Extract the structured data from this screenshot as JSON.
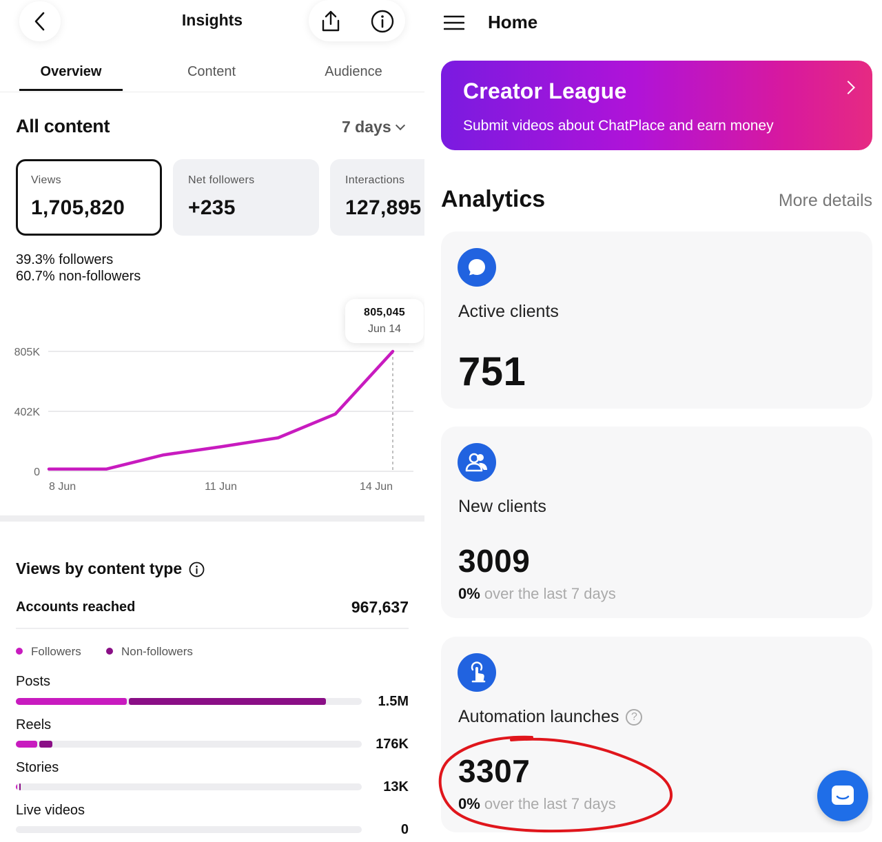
{
  "left": {
    "header": {
      "title": "Insights"
    },
    "tabs": [
      {
        "label": "Overview",
        "active": true
      },
      {
        "label": "Content",
        "active": false
      },
      {
        "label": "Audience",
        "active": false
      }
    ],
    "section_title": "All content",
    "range": "7 days",
    "stats": [
      {
        "label": "Views",
        "value": "1,705,820",
        "selected": true
      },
      {
        "label": "Net followers",
        "value": "+235",
        "selected": false
      },
      {
        "label": "Interactions",
        "value": "127,895",
        "selected": false
      }
    ],
    "followers_pct": {
      "pct": "39.3%",
      "label": "followers"
    },
    "nonfollowers_pct": {
      "pct": "60.7%",
      "label": "non-followers"
    },
    "tooltip": {
      "value": "805,045",
      "date": "Jun 14"
    },
    "views_by_type": {
      "title": "Views by content type",
      "accounts_label": "Accounts reached",
      "accounts_value": "967,637",
      "legend": [
        {
          "label": "Followers",
          "color": "#c81bbf"
        },
        {
          "label": "Non-followers",
          "color": "#8a0f86"
        }
      ],
      "rows": [
        {
          "label": "Posts",
          "value": "1.5M",
          "followers_frac": 0.32,
          "nonfollowers_frac": 0.57
        },
        {
          "label": "Reels",
          "value": "176K",
          "followers_frac": 0.062,
          "nonfollowers_frac": 0.038
        },
        {
          "label": "Stories",
          "value": "13K",
          "followers_frac": 0.003,
          "nonfollowers_frac": 0.003
        },
        {
          "label": "Live videos",
          "value": "0",
          "followers_frac": 0,
          "nonfollowers_frac": 0
        }
      ]
    }
  },
  "chart_data": {
    "type": "line",
    "series": [
      {
        "color": "#c81bbf",
        "values": [
          15000,
          15000,
          110000,
          165000,
          225000,
          385000,
          805045
        ]
      }
    ],
    "x": [
      "8 Jun",
      "9 Jun",
      "10 Jun",
      "11 Jun",
      "12 Jun",
      "13 Jun",
      "14 Jun"
    ],
    "x_tick_labels": [
      "8 Jun",
      "11 Jun",
      "14 Jun"
    ],
    "y_tick_labels": [
      "0",
      "402K",
      "805K"
    ],
    "ylim": [
      0,
      805045
    ],
    "highlight": {
      "x": "14 Jun",
      "y": 805045
    },
    "grid": true
  },
  "right": {
    "header": {
      "title": "Home"
    },
    "banner": {
      "title": "Creator League",
      "subtitle": "Submit videos about ChatPlace and earn money",
      "gradient_start": "#7a1be0",
      "gradient_end": "#e62a82"
    },
    "analytics_title": "Analytics",
    "more_details": "More details",
    "cards": [
      {
        "icon": "chat-bubble-icon",
        "label": "Active clients",
        "value": "751"
      },
      {
        "icon": "users-icon",
        "label": "New clients",
        "value": "3009",
        "change": "0%",
        "change_text": "over the last 7 days"
      },
      {
        "icon": "tap-icon",
        "label": "Automation launches",
        "value": "3307",
        "change": "0%",
        "change_text": "over the last 7 days"
      }
    ],
    "annotation_color": "#e0161c",
    "accent": "#2163e0"
  }
}
